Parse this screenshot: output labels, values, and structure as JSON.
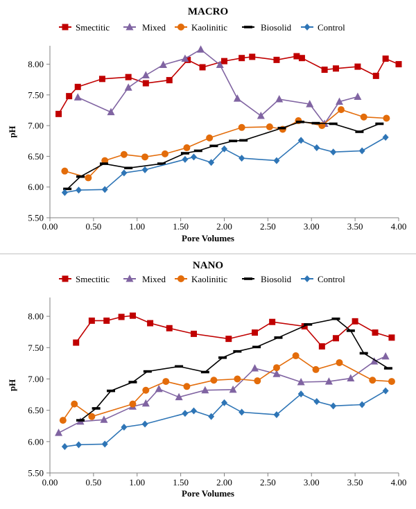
{
  "chart_data": [
    {
      "type": "line",
      "title": "MACRO",
      "xlabel": "Pore Volumes",
      "ylabel": "pH",
      "xlim": [
        0,
        4
      ],
      "ylim": [
        5.5,
        8.3
      ],
      "x_ticks": [
        "0.00",
        "0.50",
        "1.00",
        "1.50",
        "2.00",
        "2.50",
        "3.00",
        "3.50",
        "4.00"
      ],
      "y_ticks": [
        "5.50",
        "6.00",
        "6.50",
        "7.00",
        "7.50",
        "8.00"
      ],
      "grid": false,
      "legend_position": "top",
      "series": [
        {
          "name": "Smectitic",
          "color": "#c00000",
          "marker": "square",
          "x": [
            0.1,
            0.22,
            0.32,
            0.6,
            0.9,
            1.1,
            1.37,
            1.58,
            1.75,
            2.0,
            2.2,
            2.32,
            2.6,
            2.83,
            2.89,
            3.15,
            3.28,
            3.53,
            3.74,
            3.85,
            4.0
          ],
          "y": [
            7.19,
            7.48,
            7.63,
            7.76,
            7.79,
            7.69,
            7.74,
            8.07,
            7.95,
            8.05,
            8.1,
            8.12,
            8.07,
            8.13,
            8.1,
            7.91,
            7.93,
            7.96,
            7.81,
            8.09,
            8.0
          ]
        },
        {
          "name": "Mixed",
          "color": "#8064a2",
          "marker": "triangle",
          "x": [
            0.32,
            0.7,
            0.9,
            1.1,
            1.3,
            1.55,
            1.73,
            1.95,
            2.15,
            2.42,
            2.63,
            2.98,
            3.15,
            3.32,
            3.53
          ],
          "y": [
            7.46,
            7.22,
            7.62,
            7.82,
            7.99,
            8.09,
            8.24,
            7.99,
            7.44,
            7.16,
            7.43,
            7.35,
            7.03,
            7.39,
            7.47
          ]
        },
        {
          "name": "Kaolinitic",
          "color": "#e36c0a",
          "marker": "circle",
          "x": [
            0.17,
            0.44,
            0.63,
            0.85,
            1.09,
            1.32,
            1.57,
            1.83,
            2.2,
            2.52,
            2.67,
            2.85,
            3.12,
            3.34,
            3.6,
            3.86
          ],
          "y": [
            6.26,
            6.15,
            6.43,
            6.53,
            6.49,
            6.54,
            6.64,
            6.8,
            6.97,
            6.98,
            6.94,
            7.08,
            7.0,
            7.26,
            7.14,
            7.12
          ]
        },
        {
          "name": "Biosolid",
          "color": "#000000",
          "marker": "dash",
          "x": [
            0.2,
            0.35,
            0.62,
            0.9,
            1.28,
            1.55,
            1.7,
            1.88,
            2.1,
            2.22,
            2.66,
            2.87,
            3.05,
            3.25,
            3.55,
            3.78
          ],
          "y": [
            5.97,
            6.17,
            6.38,
            6.31,
            6.38,
            6.55,
            6.59,
            6.67,
            6.75,
            6.76,
            6.96,
            7.06,
            7.04,
            7.03,
            6.9,
            7.03
          ]
        },
        {
          "name": "Control",
          "color": "#2e75b6",
          "marker": "diamond",
          "x": [
            0.17,
            0.33,
            0.63,
            0.85,
            1.09,
            1.55,
            1.65,
            1.85,
            2.0,
            2.2,
            2.6,
            2.88,
            3.06,
            3.25,
            3.58,
            3.85
          ],
          "y": [
            5.91,
            5.95,
            5.96,
            6.23,
            6.28,
            6.45,
            6.49,
            6.4,
            6.62,
            6.47,
            6.43,
            6.76,
            6.64,
            6.57,
            6.59,
            6.81
          ]
        }
      ]
    },
    {
      "type": "line",
      "title": "NANO",
      "xlabel": "Pore Volumes",
      "ylabel": "pH",
      "xlim": [
        0,
        4
      ],
      "ylim": [
        5.5,
        8.3
      ],
      "x_ticks": [
        "0.00",
        "0.50",
        "1.00",
        "1.50",
        "2.00",
        "2.50",
        "3.00",
        "3.50",
        "4.00"
      ],
      "y_ticks": [
        "5.50",
        "6.00",
        "6.50",
        "7.00",
        "7.50",
        "8.00"
      ],
      "grid": false,
      "legend_position": "top",
      "series": [
        {
          "name": "Smectitic",
          "color": "#c00000",
          "marker": "square",
          "x": [
            0.3,
            0.48,
            0.65,
            0.82,
            0.95,
            1.15,
            1.37,
            1.65,
            2.05,
            2.35,
            2.55,
            2.92,
            3.12,
            3.28,
            3.5,
            3.73,
            3.92
          ],
          "y": [
            7.58,
            7.93,
            7.93,
            7.99,
            8.01,
            7.89,
            7.81,
            7.72,
            7.64,
            7.74,
            7.91,
            7.84,
            7.52,
            7.65,
            7.92,
            7.74,
            7.66
          ]
        },
        {
          "name": "Mixed",
          "color": "#8064a2",
          "marker": "triangle",
          "x": [
            0.1,
            0.35,
            0.62,
            0.95,
            1.1,
            1.25,
            1.48,
            1.78,
            2.1,
            2.35,
            2.6,
            2.88,
            3.2,
            3.45,
            3.72,
            3.85
          ],
          "y": [
            6.14,
            6.32,
            6.35,
            6.56,
            6.61,
            6.84,
            6.71,
            6.82,
            6.83,
            7.17,
            7.08,
            6.95,
            6.96,
            7.01,
            7.28,
            7.36
          ]
        },
        {
          "name": "Kaolinitic",
          "color": "#e36c0a",
          "marker": "circle",
          "x": [
            0.15,
            0.28,
            0.48,
            0.95,
            1.1,
            1.33,
            1.57,
            1.88,
            2.15,
            2.38,
            2.6,
            2.82,
            3.05,
            3.32,
            3.7,
            3.92
          ],
          "y": [
            6.34,
            6.6,
            6.4,
            6.6,
            6.82,
            6.96,
            6.88,
            6.98,
            7.0,
            6.97,
            7.18,
            7.37,
            7.15,
            7.26,
            6.98,
            6.96
          ]
        },
        {
          "name": "Biosolid",
          "color": "#000000",
          "marker": "dash",
          "x": [
            0.35,
            0.53,
            0.7,
            0.95,
            1.12,
            1.48,
            1.78,
            1.98,
            2.15,
            2.37,
            2.62,
            2.96,
            3.28,
            3.45,
            3.6,
            3.88
          ],
          "y": [
            6.34,
            6.53,
            6.81,
            6.95,
            7.12,
            7.2,
            7.11,
            7.34,
            7.44,
            7.51,
            7.66,
            7.87,
            7.96,
            7.77,
            7.41,
            7.17
          ]
        },
        {
          "name": "Control",
          "color": "#2e75b6",
          "marker": "diamond",
          "x": [
            0.17,
            0.33,
            0.63,
            0.85,
            1.09,
            1.55,
            1.65,
            1.85,
            2.0,
            2.2,
            2.6,
            2.88,
            3.06,
            3.25,
            3.58,
            3.85
          ],
          "y": [
            5.92,
            5.95,
            5.96,
            6.23,
            6.28,
            6.45,
            6.49,
            6.4,
            6.62,
            6.47,
            6.43,
            6.76,
            6.64,
            6.57,
            6.59,
            6.81
          ]
        }
      ]
    }
  ]
}
